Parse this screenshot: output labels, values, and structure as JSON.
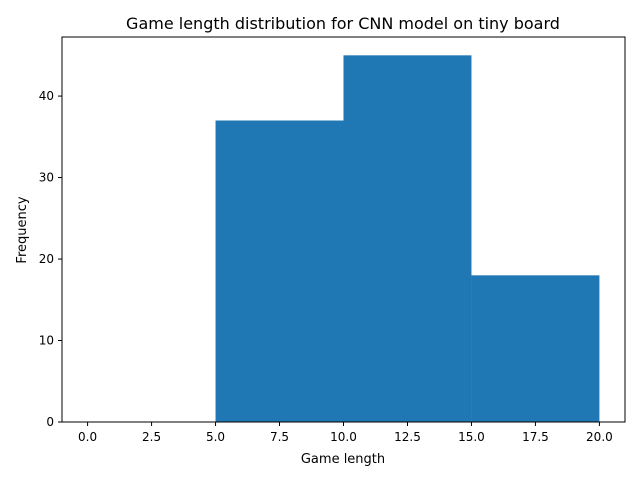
{
  "chart_data": {
    "type": "bar",
    "title": "Game length distribution for CNN model on tiny board",
    "xlabel": "Game length",
    "ylabel": "Frequency",
    "bins": [
      {
        "start": 0,
        "end": 5,
        "value": 0
      },
      {
        "start": 5,
        "end": 10,
        "value": 37
      },
      {
        "start": 10,
        "end": 15,
        "value": 45
      },
      {
        "start": 15,
        "end": 20,
        "value": 18
      }
    ],
    "xlim": [
      -1,
      21
    ],
    "ylim": [
      0,
      47.25
    ],
    "xticks": [
      0,
      2.5,
      5,
      7.5,
      10,
      12.5,
      15,
      17.5,
      20
    ],
    "xtick_labels": [
      "0.0",
      "2.5",
      "5.0",
      "7.5",
      "10.0",
      "12.5",
      "15.0",
      "17.5",
      "20.0"
    ],
    "yticks": [
      0,
      10,
      20,
      30,
      40
    ],
    "ytick_labels": [
      "0",
      "10",
      "20",
      "30",
      "40"
    ],
    "bar_color": "#1f77b4",
    "grid": false,
    "legend": false
  }
}
